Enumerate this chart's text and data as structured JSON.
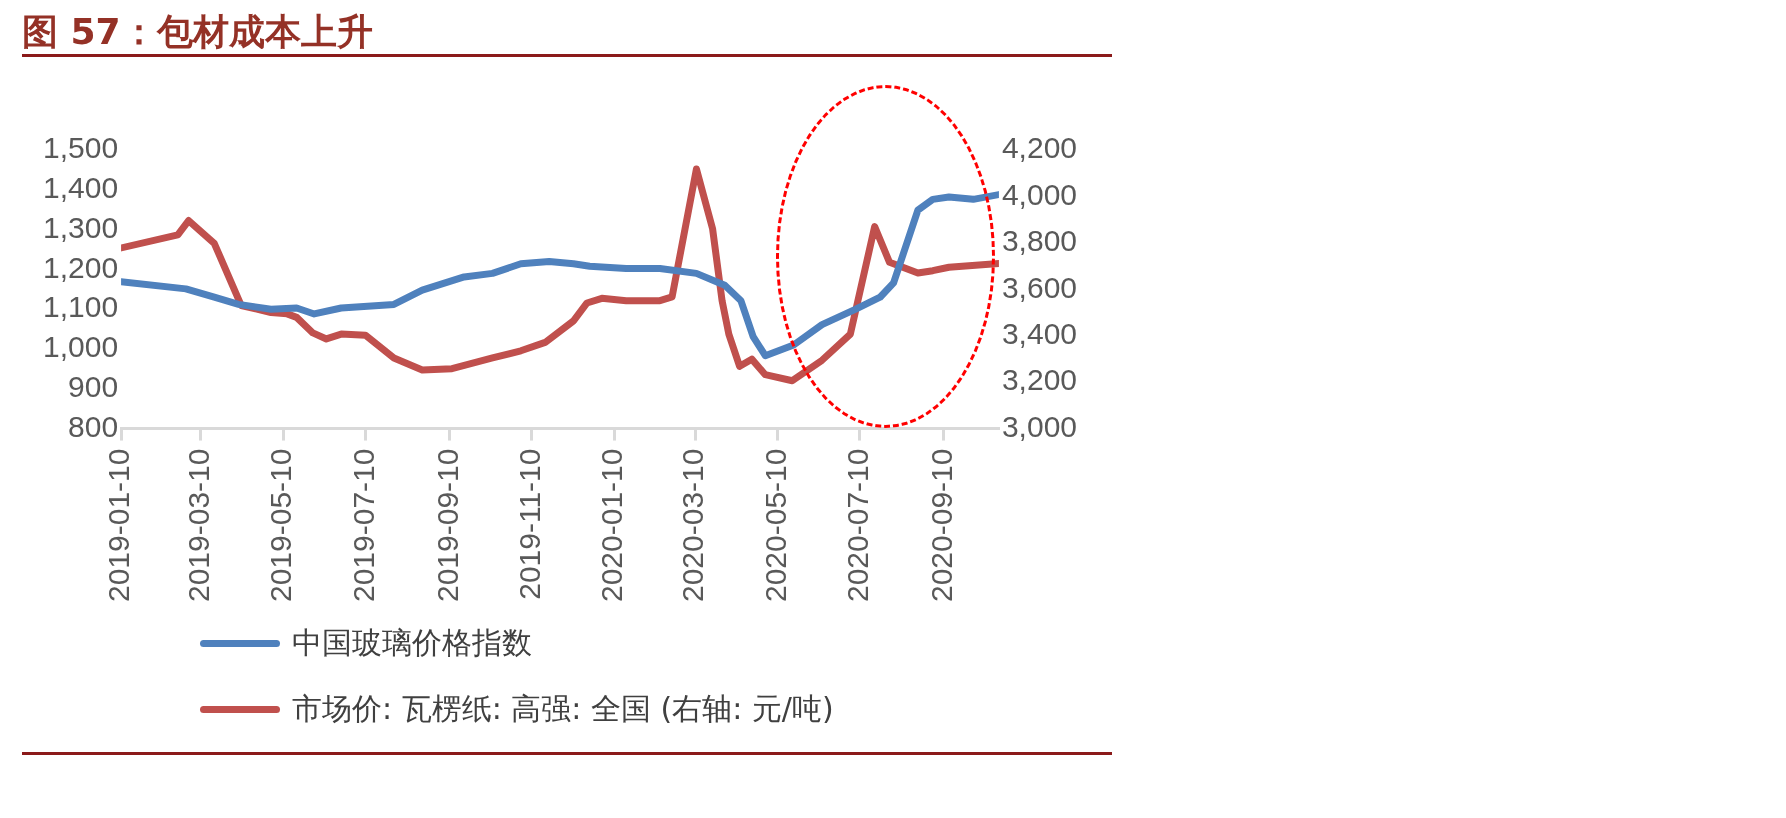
{
  "chart_data": {
    "type": "line",
    "title": "图 57：包材成本上升",
    "xlim": [
      "2019-01-10",
      "2020-10-21"
    ],
    "xticks": [
      "2019-01-10",
      "2019-03-10",
      "2019-05-10",
      "2019-07-10",
      "2019-09-10",
      "2019-11-10",
      "2020-01-10",
      "2020-03-10",
      "2020-05-10",
      "2020-07-10",
      "2020-09-10"
    ],
    "ylim": [
      800,
      1500
    ],
    "yticks": [
      800,
      900,
      {
        "value": 1000,
        "label": "1,000"
      },
      {
        "value": 1100,
        "label": "1,100"
      },
      {
        "value": 1200,
        "label": "1,200"
      },
      {
        "value": 1300,
        "label": "1,300"
      },
      {
        "value": 1400,
        "label": "1,400"
      },
      {
        "value": 1500,
        "label": "1,500"
      }
    ],
    "y2lim": [
      3000,
      4200
    ],
    "y2ticks": [
      {
        "value": 3000,
        "label": "3,000"
      },
      {
        "value": 3200,
        "label": "3,200"
      },
      {
        "value": 3400,
        "label": "3,400"
      },
      {
        "value": 3600,
        "label": "3,600"
      },
      {
        "value": 3800,
        "label": "3,800"
      },
      {
        "value": 4000,
        "label": "4,000"
      },
      {
        "value": 4200,
        "label": "4,200"
      }
    ],
    "grid": false,
    "legend": "bottom",
    "line_style": "solid",
    "series": [
      {
        "name": "中国玻璃价格指数",
        "color": "#4f81bd",
        "x": [
          "2019-01-10",
          "2019-02-27",
          "2019-03-20",
          "2019-04-07",
          "2019-05-01",
          "2019-05-20",
          "2019-06-02",
          "2019-06-22",
          "2019-07-31",
          "2019-08-21",
          "2019-09-21",
          "2019-10-12",
          "2019-11-02",
          "2019-11-23",
          "2019-12-11",
          "2019-12-23",
          "2020-01-19",
          "2020-02-13",
          "2020-03-11",
          "2020-04-01",
          "2020-04-13",
          "2020-04-22",
          "2020-05-01",
          "2020-05-22",
          "2020-06-12",
          "2020-07-07",
          "2020-07-25",
          "2020-08-04",
          "2020-08-22",
          "2020-09-02",
          "2020-09-14",
          "2020-10-02",
          "2020-10-21"
        ],
        "values": [
          1169,
          1151,
          1130,
          1112,
          1100,
          1103,
          1088,
          1103,
          1112,
          1148,
          1181,
          1190,
          1214,
          1220,
          1214,
          1208,
          1202,
          1202,
          1190,
          1160,
          1121,
          1031,
          983,
          1010,
          1061,
          1100,
          1130,
          1166,
          1349,
          1376,
          1382,
          1376,
          1388
        ]
      },
      {
        "name": "市场价: 瓦楞纸: 高强: 全国 (右轴: 元/吨)",
        "color": "#c0504d",
        "axis": "y2",
        "x": [
          "2019-01-10",
          "2019-02-21",
          "2019-03-01",
          "2019-03-20",
          "2019-04-09",
          "2019-05-01",
          "2019-05-13",
          "2019-05-20",
          "2019-06-01",
          "2019-06-11",
          "2019-06-22",
          "2019-07-10",
          "2019-07-31",
          "2019-08-21",
          "2019-09-12",
          "2019-10-12",
          "2019-11-02",
          "2019-11-20",
          "2019-12-11",
          "2019-12-21",
          "2020-01-01",
          "2020-01-19",
          "2020-02-13",
          "2020-02-22",
          "2020-03-11",
          "2020-03-23",
          "2020-03-30",
          "2020-04-04",
          "2020-04-12",
          "2020-04-21",
          "2020-05-01",
          "2020-05-21",
          "2020-06-12",
          "2020-07-03",
          "2020-07-21",
          "2020-08-01",
          "2020-08-22",
          "2020-09-02",
          "2020-09-14",
          "2020-10-21"
        ],
        "values": [
          3778,
          3834,
          3896,
          3798,
          3530,
          3500,
          3494,
          3479,
          3412,
          3386,
          3407,
          3402,
          3304,
          3252,
          3258,
          3304,
          3335,
          3371,
          3464,
          3541,
          3561,
          3551,
          3551,
          3567,
          4118,
          3860,
          3551,
          3407,
          3268,
          3299,
          3232,
          3206,
          3294,
          3407,
          3870,
          3716,
          3670,
          3680,
          3695,
          3711
        ]
      }
    ]
  }
}
